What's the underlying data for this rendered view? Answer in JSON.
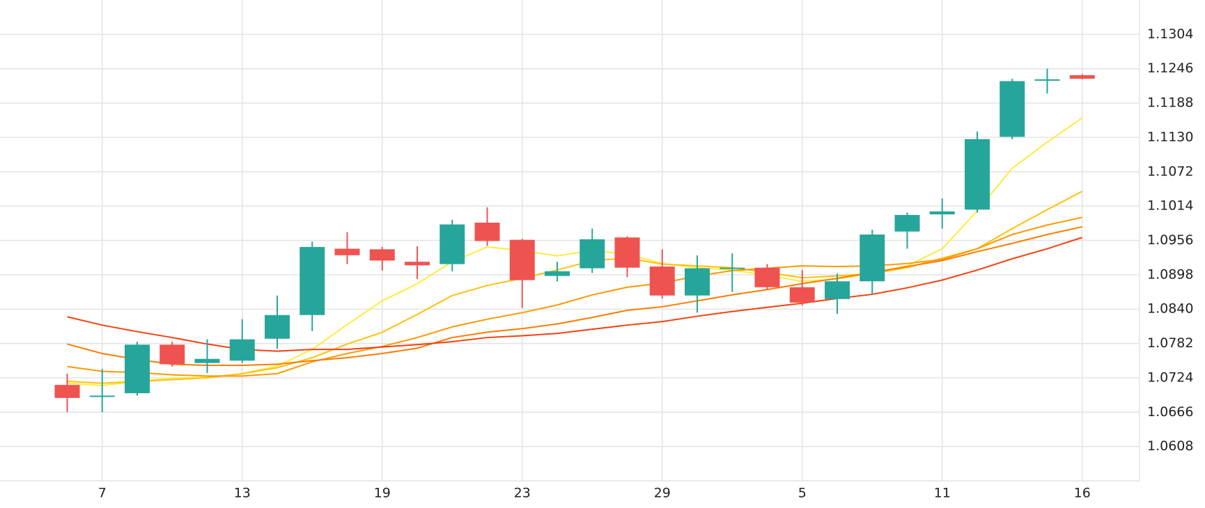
{
  "chart_data": {
    "type": "candlestick",
    "categories": [
      null,
      "7",
      null,
      null,
      null,
      "13",
      null,
      null,
      null,
      "19",
      null,
      null,
      null,
      "23",
      null,
      null,
      null,
      "29",
      null,
      null,
      null,
      "5",
      null,
      null,
      null,
      "11",
      null,
      null,
      null,
      "16"
    ],
    "open": [
      1.0712,
      1.0693,
      1.0698,
      1.078,
      1.0749,
      1.0753,
      1.079,
      1.083,
      1.0942,
      1.0941,
      1.092,
      1.0916,
      1.0986,
      1.0957,
      1.0896,
      1.0909,
      1.0961,
      1.0912,
      1.0863,
      1.0909,
      1.091,
      1.0877,
      1.0857,
      1.0887,
      1.0971,
      1.1,
      1.1008,
      1.1131,
      1.1227,
      1.1235
    ],
    "high": [
      1.0731,
      1.0739,
      1.0785,
      1.0785,
      1.0789,
      1.0823,
      1.0863,
      1.0954,
      1.097,
      1.0945,
      1.0946,
      1.0991,
      1.1012,
      1.0959,
      1.092,
      1.0976,
      1.0963,
      1.0941,
      1.0931,
      1.0934,
      1.0916,
      1.0906,
      1.09,
      1.0974,
      1.1003,
      1.1027,
      1.114,
      1.1229,
      1.1246,
      1.1237
    ],
    "low": [
      1.0666,
      1.0666,
      1.0694,
      1.0743,
      1.0732,
      1.0749,
      1.0773,
      1.0803,
      1.0916,
      1.0905,
      1.0891,
      1.0904,
      1.0947,
      1.0842,
      1.0887,
      1.0901,
      1.0894,
      1.0858,
      1.0834,
      1.0869,
      1.0873,
      1.0846,
      1.0832,
      1.0865,
      1.0942,
      1.0976,
      1.1003,
      1.1127,
      1.1204,
      1.1228
    ],
    "close": [
      1.069,
      1.0694,
      1.078,
      1.0747,
      1.0756,
      1.0789,
      1.083,
      1.0945,
      1.0931,
      1.0922,
      1.0914,
      1.0983,
      1.0955,
      1.0889,
      1.0904,
      1.0958,
      1.091,
      1.0863,
      1.0909,
      1.091,
      1.0877,
      1.0851,
      1.0887,
      1.0966,
      1.0999,
      1.1005,
      1.1127,
      1.1225,
      1.1228,
      1.1229
    ],
    "up_color": "#26a69a",
    "down_color": "#ef5350",
    "lines": [
      {
        "color": "#ffeb3b",
        "values": [
          1.0715,
          1.0711,
          1.0718,
          1.0723,
          1.0725,
          1.0731,
          1.0744,
          1.0772,
          1.0814,
          1.0854,
          1.0883,
          1.092,
          1.0945,
          1.0939,
          1.093,
          1.0939,
          1.0933,
          1.0917,
          1.091,
          1.0906,
          1.0897,
          1.0887,
          1.0891,
          1.09,
          1.0913,
          1.0942,
          1.1006,
          1.1078,
          1.1122,
          1.1163
        ]
      },
      {
        "color": "#ffc107",
        "values": [
          1.0718,
          1.0715,
          1.0718,
          1.0721,
          1.0724,
          1.0731,
          1.0741,
          1.0758,
          1.0781,
          1.0801,
          1.0831,
          1.0863,
          1.088,
          1.0892,
          1.0906,
          1.0922,
          1.0926,
          1.0916,
          1.0913,
          1.091,
          1.0902,
          1.0893,
          1.0896,
          1.09,
          1.091,
          1.0926,
          1.0942,
          1.0976,
          1.1008,
          1.1039
        ]
      },
      {
        "color": "#ff9800",
        "values": [
          1.0743,
          1.0735,
          1.0733,
          1.0729,
          1.0727,
          1.0727,
          1.0731,
          1.0751,
          1.0765,
          1.0777,
          1.0792,
          1.081,
          1.0823,
          1.0834,
          1.0847,
          1.0864,
          1.0877,
          1.0884,
          1.0896,
          1.0905,
          1.0909,
          1.0913,
          1.0912,
          1.0913,
          1.0917,
          1.0924,
          1.0942,
          1.0966,
          1.0982,
          1.0995
        ]
      },
      {
        "color": "#ff7a00",
        "values": [
          1.0781,
          1.0765,
          1.0755,
          1.0747,
          1.0745,
          1.0745,
          1.0747,
          1.0753,
          1.0758,
          1.0765,
          1.0774,
          1.0792,
          1.0801,
          1.0807,
          1.0815,
          1.0826,
          1.0838,
          1.0844,
          1.0854,
          1.0864,
          1.0873,
          1.0883,
          1.0892,
          1.0902,
          1.0912,
          1.0922,
          1.0937,
          1.0951,
          1.0966,
          1.0979
        ]
      },
      {
        "color": "#f4400e",
        "values": [
          1.0827,
          1.0813,
          1.0802,
          1.0792,
          1.0781,
          1.0772,
          1.0769,
          1.0772,
          1.0772,
          1.0776,
          1.078,
          1.0785,
          1.0792,
          1.0795,
          1.0799,
          1.0806,
          1.0813,
          1.0819,
          1.0828,
          1.0836,
          1.0843,
          1.085,
          1.0858,
          1.0865,
          1.0876,
          1.0889,
          1.0906,
          1.0925,
          1.0942,
          1.0961
        ]
      }
    ],
    "ylim": [
      1.055,
      1.1362
    ],
    "yticks": [
      1.0608,
      1.0666,
      1.0724,
      1.0782,
      {
        "value": 1.084,
        "label": "1.0840"
      },
      1.0898,
      1.0956,
      1.1014,
      1.1072,
      {
        "value": 1.113,
        "label": "1.1130"
      },
      1.1188,
      1.1246,
      1.1304
    ],
    "grid": true
  }
}
